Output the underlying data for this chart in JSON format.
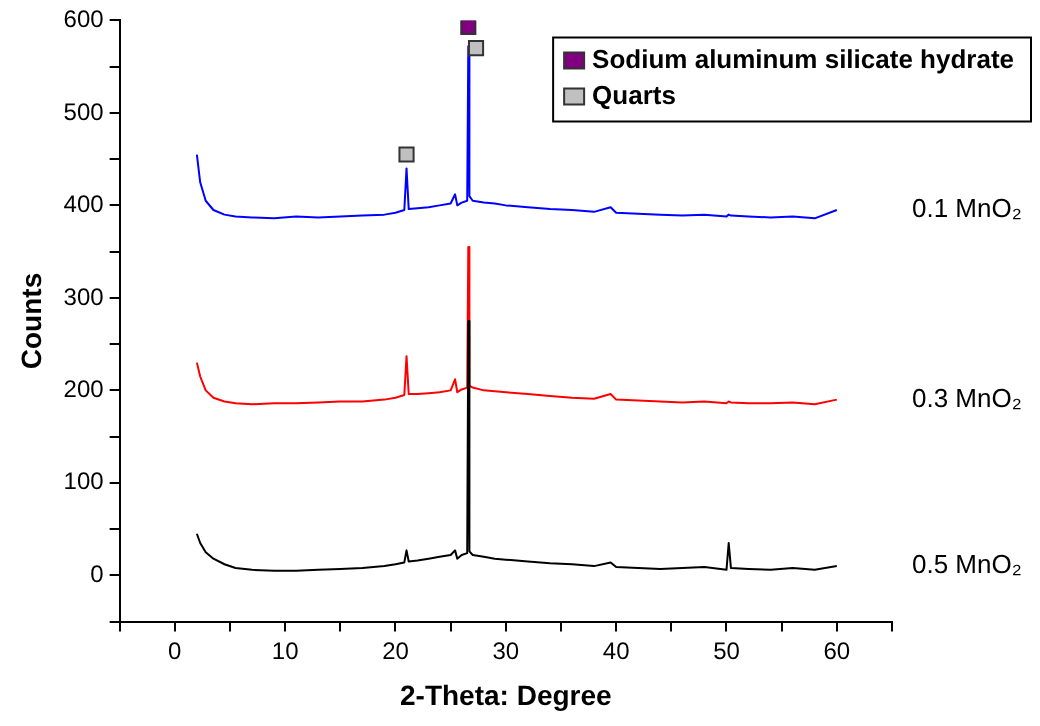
{
  "chart_data": {
    "type": "line",
    "xlabel": "2-Theta: Degree",
    "ylabel": "Counts",
    "x": [
      2,
      2.3,
      2.8,
      3.5,
      4.5,
      5.5,
      7,
      9,
      11,
      13,
      15,
      17,
      19,
      20,
      20.8,
      21,
      21.2,
      22,
      23,
      24,
      25,
      25.4,
      25.6,
      26,
      26.5,
      26.6,
      26.7,
      27,
      28,
      29,
      30,
      32,
      34,
      36,
      38,
      39.5,
      40,
      42,
      44,
      46,
      48,
      50,
      50.2,
      50.4,
      52,
      54,
      56,
      58,
      60
    ],
    "xlim": [
      -5,
      65
    ],
    "xticks": [
      {
        "value": -5,
        "label": null
      },
      0,
      {
        "value": 5,
        "label": null
      },
      10,
      {
        "value": 15,
        "label": null
      },
      20,
      {
        "value": 25,
        "label": null
      },
      30,
      {
        "value": 35,
        "label": null
      },
      40,
      {
        "value": 45,
        "label": null
      },
      50,
      {
        "value": 55,
        "label": null
      },
      60,
      {
        "value": 65,
        "label": null
      }
    ],
    "ylim": [
      -50,
      600
    ],
    "yticks": [
      {
        "value": -50,
        "label": null
      },
      0,
      {
        "value": 50,
        "label": null
      },
      100,
      {
        "value": 150,
        "label": null
      },
      200,
      {
        "value": 250,
        "label": null
      },
      300,
      {
        "value": 350,
        "label": null
      },
      400,
      {
        "value": 450,
        "label": null
      },
      500,
      {
        "value": 550,
        "label": null
      },
      600
    ],
    "grid": false,
    "legend": "top right",
    "series": [
      {
        "name": "0.1 MnO₂",
        "color": "#0000ff",
        "marker": "none",
        "values": [
          455,
          425,
          405,
          395,
          390,
          388,
          387,
          386,
          388,
          387,
          388,
          389,
          390,
          392,
          395,
          440,
          396,
          397,
          398,
          400,
          402,
          412,
          400,
          403,
          405,
          572,
          410,
          405,
          403,
          402,
          400,
          398,
          396,
          395,
          393,
          398,
          392,
          391,
          390,
          389,
          390,
          388,
          390,
          389,
          388,
          387,
          388,
          386,
          395
        ]
      },
      {
        "name": "0.3 MnO₂",
        "color": "#ff0000",
        "marker": "none",
        "values": [
          230,
          215,
          200,
          192,
          188,
          186,
          185,
          186,
          186,
          187,
          188,
          188,
          190,
          192,
          195,
          237,
          196,
          196,
          197,
          198,
          200,
          212,
          198,
          201,
          203,
          355,
          205,
          203,
          200,
          199,
          198,
          196,
          194,
          192,
          191,
          196,
          190,
          189,
          188,
          187,
          188,
          186,
          188,
          187,
          186,
          186,
          187,
          185,
          190
        ]
      },
      {
        "name": "0.5 MnO₂",
        "color": "#000000",
        "marker": "none",
        "values": [
          45,
          35,
          25,
          18,
          12,
          8,
          6,
          5,
          5,
          6,
          7,
          8,
          10,
          12,
          14,
          27,
          15,
          16,
          18,
          20,
          22,
          27,
          18,
          22,
          24,
          275,
          26,
          22,
          20,
          18,
          17,
          15,
          13,
          12,
          10,
          14,
          9,
          8,
          7,
          8,
          9,
          6,
          35,
          8,
          7,
          6,
          8,
          6,
          10
        ]
      },
      {
        "name": "Sodium aluminum silicate hydrate",
        "type": "scatter",
        "marker": "square",
        "color": "#800080",
        "x": [
          26.6
        ],
        "values": [
          593
        ]
      },
      {
        "name": "Quarts",
        "type": "scatter",
        "marker": "square",
        "color": "#c0c0c0",
        "x": [
          21,
          27.3
        ],
        "values": [
          455,
          570
        ]
      }
    ]
  }
}
